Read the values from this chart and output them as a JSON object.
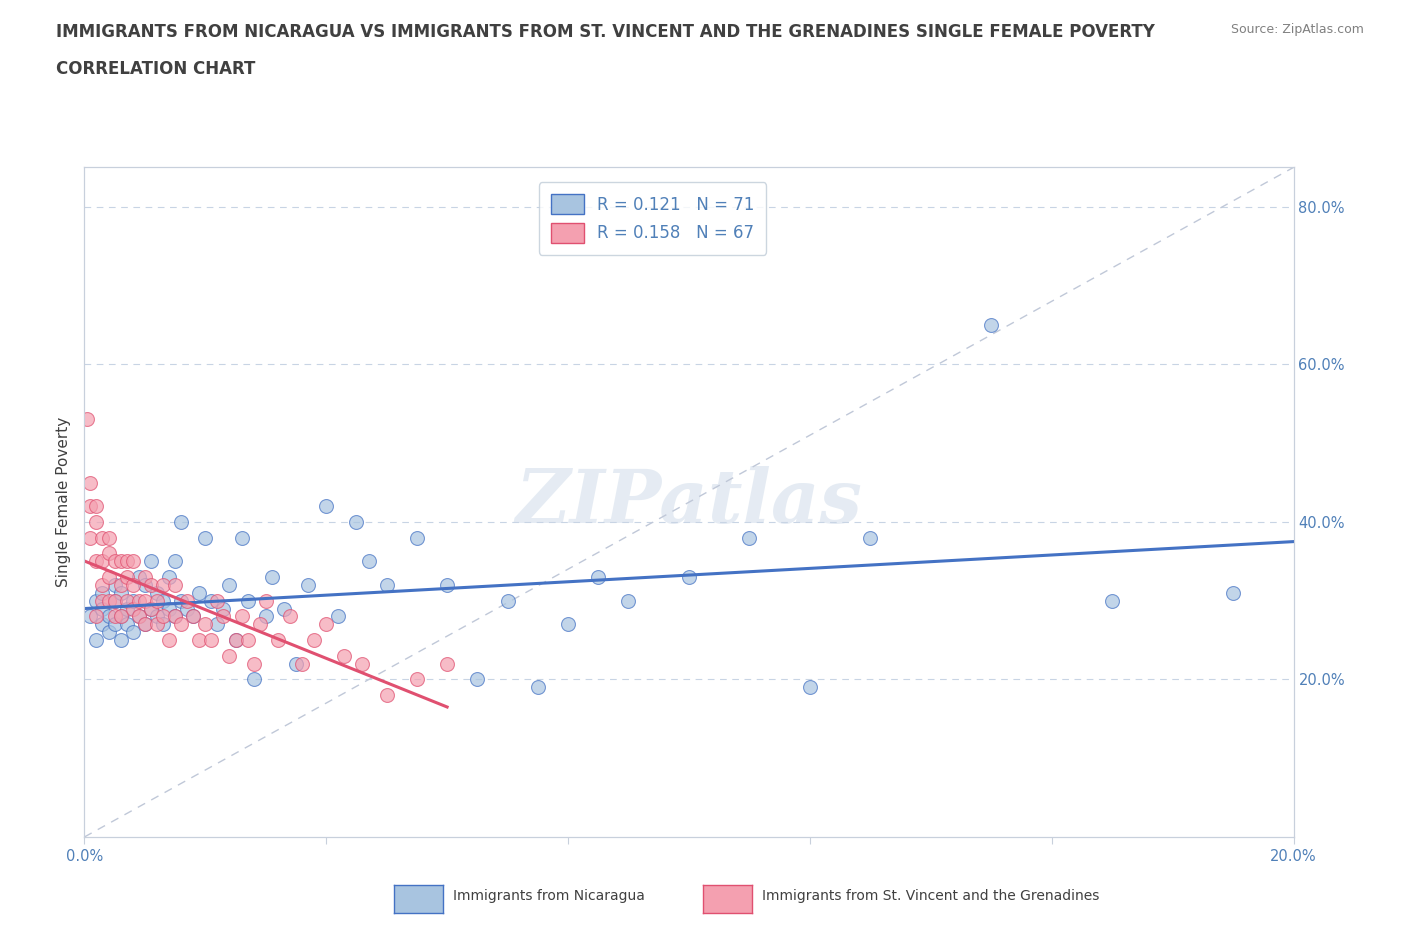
{
  "title_line1": "IMMIGRANTS FROM NICARAGUA VS IMMIGRANTS FROM ST. VINCENT AND THE GRENADINES SINGLE FEMALE POVERTY",
  "title_line2": "CORRELATION CHART",
  "source_text": "Source: ZipAtlas.com",
  "watermark": "ZIPatlas",
  "ylabel": "Single Female Poverty",
  "xlim": [
    0.0,
    0.2
  ],
  "ylim": [
    0.0,
    0.85
  ],
  "xticks": [
    0.0,
    0.04,
    0.08,
    0.12,
    0.16,
    0.2
  ],
  "xticklabels": [
    "0.0%",
    "",
    "",
    "",
    "",
    "20.0%"
  ],
  "yticks": [
    0.0,
    0.2,
    0.4,
    0.6,
    0.8
  ],
  "yticklabels": [
    "",
    "20.0%",
    "40.0%",
    "60.0%",
    "80.0%"
  ],
  "blue_R": 0.121,
  "blue_N": 71,
  "pink_R": 0.158,
  "pink_N": 67,
  "blue_color": "#a8c4e0",
  "pink_color": "#f4a0b0",
  "blue_line_color": "#4472c4",
  "pink_line_color": "#e05070",
  "ref_line_color": "#c0c8d8",
  "legend_label_blue": "Immigrants from Nicaragua",
  "legend_label_pink": "Immigrants from St. Vincent and the Grenadines",
  "title_color": "#404040",
  "axis_color": "#c8d0dc",
  "tick_color": "#5080b8",
  "source_color": "#808080",
  "blue_scatter_x": [
    0.001,
    0.002,
    0.002,
    0.003,
    0.003,
    0.003,
    0.004,
    0.004,
    0.005,
    0.005,
    0.005,
    0.006,
    0.006,
    0.006,
    0.007,
    0.007,
    0.008,
    0.008,
    0.009,
    0.009,
    0.01,
    0.01,
    0.011,
    0.011,
    0.012,
    0.012,
    0.013,
    0.013,
    0.014,
    0.014,
    0.015,
    0.015,
    0.016,
    0.016,
    0.017,
    0.018,
    0.019,
    0.02,
    0.021,
    0.022,
    0.023,
    0.024,
    0.025,
    0.026,
    0.027,
    0.028,
    0.03,
    0.031,
    0.033,
    0.035,
    0.037,
    0.04,
    0.042,
    0.045,
    0.047,
    0.05,
    0.055,
    0.06,
    0.065,
    0.07,
    0.075,
    0.08,
    0.085,
    0.09,
    0.1,
    0.11,
    0.12,
    0.13,
    0.15,
    0.17,
    0.19
  ],
  "blue_scatter_y": [
    0.28,
    0.25,
    0.3,
    0.27,
    0.29,
    0.31,
    0.26,
    0.28,
    0.27,
    0.3,
    0.32,
    0.25,
    0.28,
    0.31,
    0.27,
    0.29,
    0.26,
    0.3,
    0.28,
    0.33,
    0.27,
    0.32,
    0.29,
    0.35,
    0.28,
    0.31,
    0.3,
    0.27,
    0.29,
    0.33,
    0.28,
    0.35,
    0.3,
    0.4,
    0.29,
    0.28,
    0.31,
    0.38,
    0.3,
    0.27,
    0.29,
    0.32,
    0.25,
    0.38,
    0.3,
    0.2,
    0.28,
    0.33,
    0.29,
    0.22,
    0.32,
    0.42,
    0.28,
    0.4,
    0.35,
    0.32,
    0.38,
    0.32,
    0.2,
    0.3,
    0.19,
    0.27,
    0.33,
    0.3,
    0.33,
    0.38,
    0.19,
    0.38,
    0.65,
    0.3,
    0.31
  ],
  "pink_scatter_x": [
    0.0005,
    0.001,
    0.001,
    0.001,
    0.002,
    0.002,
    0.002,
    0.002,
    0.003,
    0.003,
    0.003,
    0.003,
    0.004,
    0.004,
    0.004,
    0.004,
    0.005,
    0.005,
    0.005,
    0.006,
    0.006,
    0.006,
    0.007,
    0.007,
    0.007,
    0.008,
    0.008,
    0.008,
    0.009,
    0.009,
    0.01,
    0.01,
    0.01,
    0.011,
    0.011,
    0.012,
    0.012,
    0.013,
    0.013,
    0.014,
    0.015,
    0.015,
    0.016,
    0.017,
    0.018,
    0.019,
    0.02,
    0.021,
    0.022,
    0.023,
    0.024,
    0.025,
    0.026,
    0.027,
    0.028,
    0.029,
    0.03,
    0.032,
    0.034,
    0.036,
    0.038,
    0.04,
    0.043,
    0.046,
    0.05,
    0.055,
    0.06
  ],
  "pink_scatter_y": [
    0.53,
    0.42,
    0.45,
    0.38,
    0.35,
    0.4,
    0.42,
    0.28,
    0.35,
    0.38,
    0.3,
    0.32,
    0.33,
    0.36,
    0.38,
    0.3,
    0.35,
    0.3,
    0.28,
    0.32,
    0.35,
    0.28,
    0.33,
    0.3,
    0.35,
    0.29,
    0.32,
    0.35,
    0.3,
    0.28,
    0.27,
    0.3,
    0.33,
    0.29,
    0.32,
    0.27,
    0.3,
    0.28,
    0.32,
    0.25,
    0.28,
    0.32,
    0.27,
    0.3,
    0.28,
    0.25,
    0.27,
    0.25,
    0.3,
    0.28,
    0.23,
    0.25,
    0.28,
    0.25,
    0.22,
    0.27,
    0.3,
    0.25,
    0.28,
    0.22,
    0.25,
    0.27,
    0.23,
    0.22,
    0.18,
    0.2,
    0.22
  ],
  "background_color": "#ffffff",
  "grid_color": "#c8d4e4",
  "title_fontsize": 12,
  "axis_label_fontsize": 11,
  "tick_fontsize": 10.5,
  "marker_size": 100
}
